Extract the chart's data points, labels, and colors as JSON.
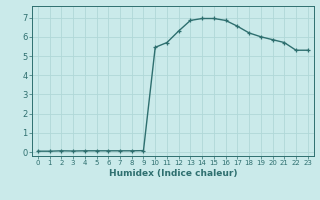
{
  "title": "",
  "xlabel": "Humidex (Indice chaleur)",
  "ylabel": "",
  "x": [
    0,
    1,
    2,
    3,
    4,
    5,
    6,
    7,
    8,
    9,
    10,
    11,
    12,
    13,
    14,
    15,
    16,
    17,
    18,
    19,
    20,
    21,
    22,
    23
  ],
  "y": [
    0.05,
    0.05,
    0.07,
    0.06,
    0.07,
    0.07,
    0.07,
    0.07,
    0.07,
    0.08,
    5.45,
    5.7,
    6.3,
    6.85,
    6.95,
    6.95,
    6.85,
    6.55,
    6.2,
    6.0,
    5.85,
    5.7,
    5.3,
    5.3
  ],
  "line_color": "#2e6f6f",
  "bg_color": "#caeaea",
  "grid_color": "#b0d8d8",
  "tick_color": "#2e6f6f",
  "label_color": "#2e6f6f",
  "xlim": [
    -0.5,
    23.5
  ],
  "ylim": [
    -0.2,
    7.6
  ],
  "yticks": [
    0,
    1,
    2,
    3,
    4,
    5,
    6,
    7
  ],
  "xticks": [
    0,
    1,
    2,
    3,
    4,
    5,
    6,
    7,
    8,
    9,
    10,
    11,
    12,
    13,
    14,
    15,
    16,
    17,
    18,
    19,
    20,
    21,
    22,
    23
  ]
}
